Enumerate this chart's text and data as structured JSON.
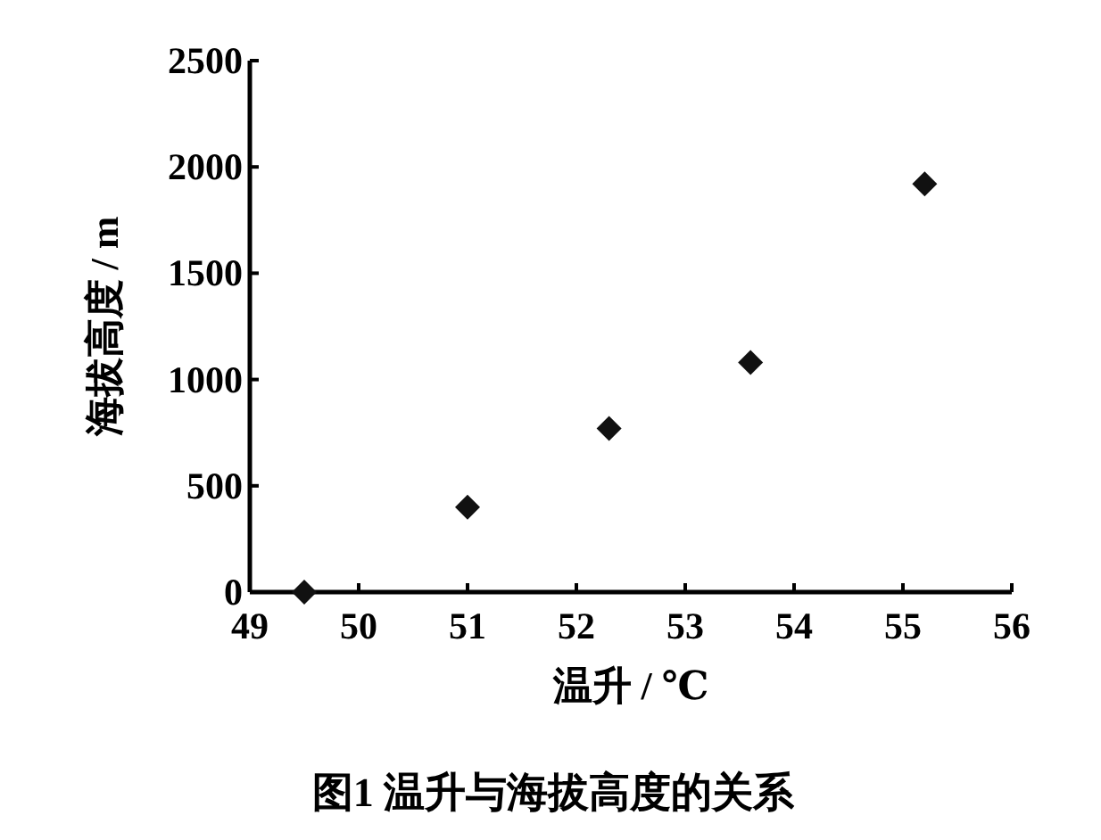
{
  "chart_data": {
    "type": "scatter",
    "title": "图1  温升与海拔高度的关系",
    "xlabel": "温升 / ℃",
    "ylabel": "海拔高度 / m",
    "x": [
      49.5,
      51.0,
      52.3,
      53.6,
      55.2
    ],
    "series": [
      {
        "color": "#111111",
        "values": [
          0,
          400,
          770,
          1080,
          1920
        ]
      }
    ],
    "xlim": [
      49,
      56
    ],
    "xticks": [
      49,
      50,
      51,
      52,
      53,
      54,
      55,
      56
    ],
    "ylim": [
      0,
      2500
    ],
    "yticks": [
      0,
      500,
      1000,
      1500,
      2000,
      2500
    ],
    "marker": "diamond",
    "grid": false
  }
}
